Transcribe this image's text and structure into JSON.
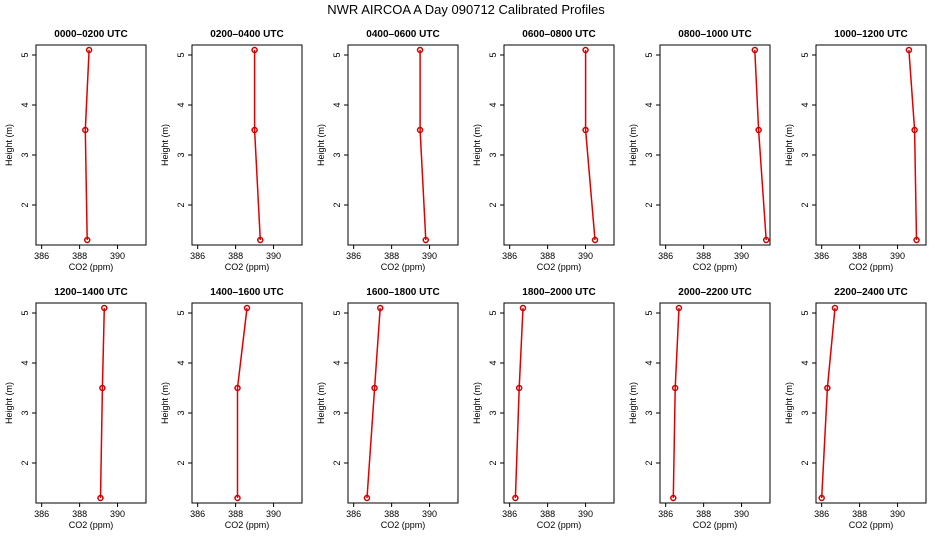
{
  "figure": {
    "title": "NWR AIRCOA A  Day 090712  Calibrated Profiles"
  },
  "chart_data": [
    {
      "type": "line",
      "title": "0000–0200 UTC",
      "xlabel": "CO2 (ppm)",
      "ylabel": "Height (m)",
      "xlim": [
        385.7,
        391.5
      ],
      "ylim": [
        1.2,
        5.2
      ],
      "xticks": [
        386,
        388,
        390
      ],
      "yticks": [
        2,
        3,
        4,
        5
      ],
      "series": [
        {
          "x": [
            388.4,
            388.3,
            388.5
          ],
          "y": [
            1.3,
            3.5,
            5.1
          ]
        }
      ]
    },
    {
      "type": "line",
      "title": "0200–0400 UTC",
      "xlabel": "CO2 (ppm)",
      "ylabel": "Height (m)",
      "xlim": [
        385.7,
        391.5
      ],
      "ylim": [
        1.2,
        5.2
      ],
      "xticks": [
        386,
        388,
        390
      ],
      "yticks": [
        2,
        3,
        4,
        5
      ],
      "series": [
        {
          "x": [
            389.3,
            389.0,
            389.0
          ],
          "y": [
            1.3,
            3.5,
            5.1
          ]
        }
      ]
    },
    {
      "type": "line",
      "title": "0400–0600 UTC",
      "xlabel": "CO2 (ppm)",
      "ylabel": "Height (m)",
      "xlim": [
        385.7,
        391.5
      ],
      "ylim": [
        1.2,
        5.2
      ],
      "xticks": [
        386,
        388,
        390
      ],
      "yticks": [
        2,
        3,
        4,
        5
      ],
      "series": [
        {
          "x": [
            389.8,
            389.5,
            389.5
          ],
          "y": [
            1.3,
            3.5,
            5.1
          ]
        }
      ]
    },
    {
      "type": "line",
      "title": "0600–0800 UTC",
      "xlabel": "CO2 (ppm)",
      "ylabel": "Height (m)",
      "xlim": [
        385.7,
        391.5
      ],
      "ylim": [
        1.2,
        5.2
      ],
      "xticks": [
        386,
        388,
        390
      ],
      "yticks": [
        2,
        3,
        4,
        5
      ],
      "series": [
        {
          "x": [
            390.5,
            390.0,
            390.0
          ],
          "y": [
            1.3,
            3.5,
            5.1
          ]
        }
      ]
    },
    {
      "type": "line",
      "title": "0800–1000 UTC",
      "xlabel": "CO2 (ppm)",
      "ylabel": "Height (m)",
      "xlim": [
        385.7,
        391.5
      ],
      "ylim": [
        1.2,
        5.2
      ],
      "xticks": [
        386,
        388,
        390
      ],
      "yticks": [
        2,
        3,
        4,
        5
      ],
      "series": [
        {
          "x": [
            391.3,
            390.9,
            390.7
          ],
          "y": [
            1.3,
            3.5,
            5.1
          ]
        }
      ]
    },
    {
      "type": "line",
      "title": "1000–1200 UTC",
      "xlabel": "CO2 (ppm)",
      "ylabel": "Height (m)",
      "xlim": [
        385.7,
        391.5
      ],
      "ylim": [
        1.2,
        5.2
      ],
      "xticks": [
        386,
        388,
        390
      ],
      "yticks": [
        2,
        3,
        4,
        5
      ],
      "series": [
        {
          "x": [
            391.0,
            390.9,
            390.6
          ],
          "y": [
            1.3,
            3.5,
            5.1
          ]
        }
      ]
    },
    {
      "type": "line",
      "title": "1200–1400 UTC",
      "xlabel": "CO2 (ppm)",
      "ylabel": "Height (m)",
      "xlim": [
        385.7,
        391.5
      ],
      "ylim": [
        1.2,
        5.2
      ],
      "xticks": [
        386,
        388,
        390
      ],
      "yticks": [
        2,
        3,
        4,
        5
      ],
      "series": [
        {
          "x": [
            389.1,
            389.2,
            389.3
          ],
          "y": [
            1.3,
            3.5,
            5.1
          ]
        }
      ]
    },
    {
      "type": "line",
      "title": "1400–1600 UTC",
      "xlabel": "CO2 (ppm)",
      "ylabel": "Height (m)",
      "xlim": [
        385.7,
        391.5
      ],
      "ylim": [
        1.2,
        5.2
      ],
      "xticks": [
        386,
        388,
        390
      ],
      "yticks": [
        2,
        3,
        4,
        5
      ],
      "series": [
        {
          "x": [
            388.1,
            388.1,
            388.6
          ],
          "y": [
            1.3,
            3.5,
            5.1
          ]
        }
      ]
    },
    {
      "type": "line",
      "title": "1600–1800 UTC",
      "xlabel": "CO2 (ppm)",
      "ylabel": "Height (m)",
      "xlim": [
        385.7,
        391.5
      ],
      "ylim": [
        1.2,
        5.2
      ],
      "xticks": [
        386,
        388,
        390
      ],
      "yticks": [
        2,
        3,
        4,
        5
      ],
      "series": [
        {
          "x": [
            386.7,
            387.1,
            387.4
          ],
          "y": [
            1.3,
            3.5,
            5.1
          ]
        }
      ]
    },
    {
      "type": "line",
      "title": "1800–2000 UTC",
      "xlabel": "CO2 (ppm)",
      "ylabel": "Height (m)",
      "xlim": [
        385.7,
        391.5
      ],
      "ylim": [
        1.2,
        5.2
      ],
      "xticks": [
        386,
        388,
        390
      ],
      "yticks": [
        2,
        3,
        4,
        5
      ],
      "series": [
        {
          "x": [
            386.3,
            386.5,
            386.7
          ],
          "y": [
            1.3,
            3.5,
            5.1
          ]
        }
      ]
    },
    {
      "type": "line",
      "title": "2000–2200 UTC",
      "xlabel": "CO2 (ppm)",
      "ylabel": "Height (m)",
      "xlim": [
        385.7,
        391.5
      ],
      "ylim": [
        1.2,
        5.2
      ],
      "xticks": [
        386,
        388,
        390
      ],
      "yticks": [
        2,
        3,
        4,
        5
      ],
      "series": [
        {
          "x": [
            386.4,
            386.5,
            386.7
          ],
          "y": [
            1.3,
            3.5,
            5.1
          ]
        }
      ]
    },
    {
      "type": "line",
      "title": "2200–2400 UTC",
      "xlabel": "CO2 (ppm)",
      "ylabel": "Height (m)",
      "xlim": [
        385.7,
        391.5
      ],
      "ylim": [
        1.2,
        5.2
      ],
      "xticks": [
        386,
        388,
        390
      ],
      "yticks": [
        2,
        3,
        4,
        5
      ],
      "series": [
        {
          "x": [
            386.0,
            386.3,
            386.7
          ],
          "y": [
            1.3,
            3.5,
            5.1
          ]
        }
      ]
    }
  ],
  "style": {
    "line_color": "#e00000",
    "marker_color": "#cc0000",
    "axis_color": "#000000",
    "background": "#ffffff"
  }
}
